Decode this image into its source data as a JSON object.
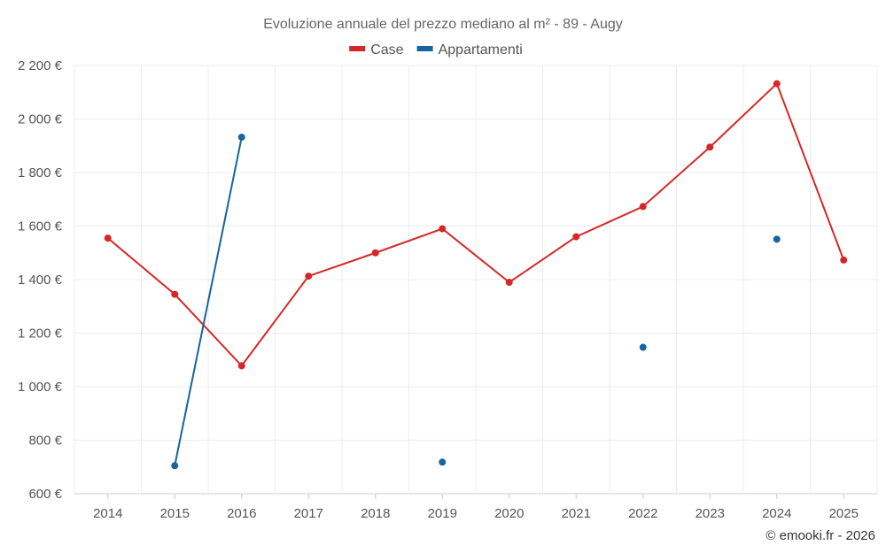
{
  "chart_data": {
    "type": "line",
    "title": "Evoluzione annuale del prezzo mediano al m² - 89 - Augy",
    "categories": [
      "2014",
      "2015",
      "2016",
      "2017",
      "2018",
      "2019",
      "2020",
      "2021",
      "2022",
      "2023",
      "2024",
      "2025"
    ],
    "series": [
      {
        "name": "Case",
        "color": "#d62728",
        "values": [
          1555,
          1345,
          1078,
          1413,
          1500,
          1590,
          1390,
          1560,
          1673,
          1895,
          2132,
          1473
        ]
      },
      {
        "name": "Appartamenti",
        "color": "#1565a0",
        "values": [
          null,
          705,
          1932,
          null,
          null,
          718,
          null,
          null,
          1147,
          null,
          1551,
          null
        ]
      }
    ],
    "y_ticks": [
      600,
      800,
      1000,
      1200,
      1400,
      1600,
      1800,
      2000,
      2200
    ],
    "y_tick_labels": [
      "600 €",
      "800 €",
      "1 000 €",
      "1 200 €",
      "1 400 €",
      "1 600 €",
      "1 800 €",
      "2 000 €",
      "2 200 €"
    ],
    "ylim": [
      600,
      2200
    ],
    "grid": true,
    "legend_position": "top-center",
    "credit": "© emooki.fr - 2026"
  }
}
